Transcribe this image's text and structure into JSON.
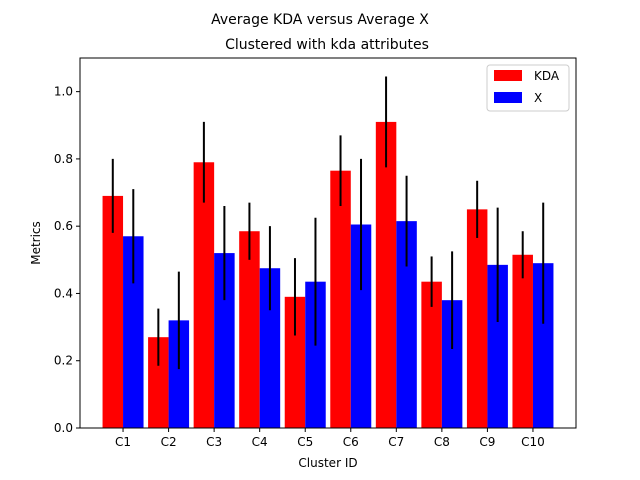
{
  "chart_data": {
    "type": "bar",
    "title": "Average KDA versus Average X",
    "subtitle": "Clustered with kda attributes",
    "xlabel": "Cluster ID",
    "ylabel": "Metrics",
    "categories": [
      "C1",
      "C2",
      "C3",
      "C4",
      "C5",
      "C6",
      "C7",
      "C8",
      "C9",
      "C10"
    ],
    "ylim": [
      0,
      1.1
    ],
    "yticks": [
      "0.0",
      "0.2",
      "0.4",
      "0.6",
      "0.8",
      "1.0"
    ],
    "grid": false,
    "legend_position": "top-right",
    "series": [
      {
        "name": "KDA",
        "color": "#ff0000",
        "values": [
          0.69,
          0.27,
          0.79,
          0.585,
          0.39,
          0.765,
          0.91,
          0.435,
          0.65,
          0.515
        ],
        "errors": [
          0.11,
          0.085,
          0.12,
          0.085,
          0.115,
          0.105,
          0.135,
          0.075,
          0.085,
          0.07
        ]
      },
      {
        "name": "X",
        "color": "#0000ff",
        "values": [
          0.57,
          0.32,
          0.52,
          0.475,
          0.435,
          0.605,
          0.615,
          0.38,
          0.485,
          0.49
        ],
        "errors": [
          0.14,
          0.145,
          0.14,
          0.125,
          0.19,
          0.195,
          0.135,
          0.145,
          0.17,
          0.18
        ]
      }
    ]
  }
}
